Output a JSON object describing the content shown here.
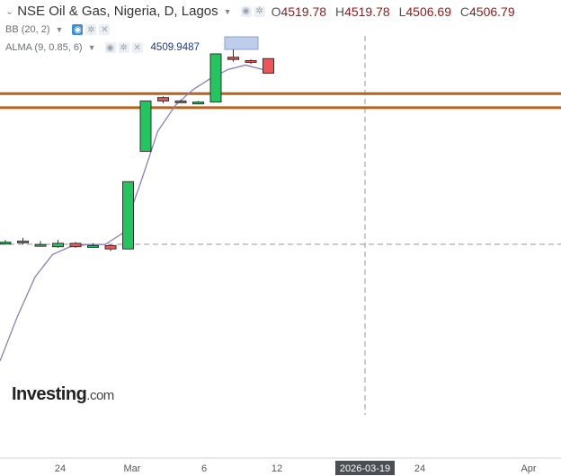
{
  "title": {
    "symbol": "NSE Oil & Gas, Nigeria, D, Lagos",
    "ohlc": [
      {
        "k": "O",
        "v": "4519.78"
      },
      {
        "k": "H",
        "v": "4519.78"
      },
      {
        "k": "L",
        "v": "4506.69"
      },
      {
        "k": "C",
        "v": "4506.79"
      }
    ]
  },
  "indicators": {
    "bb": {
      "label": "BB (20, 2)"
    },
    "alma": {
      "label": "ALMA (9, 0.85, 6)",
      "value": "4509.9487"
    }
  },
  "logo": {
    "main": "Investing",
    "suffix": ".com"
  },
  "colors": {
    "up": "#22c55e",
    "down": "#f05454",
    "line": "#8b7fb8",
    "hline": "#b5631f",
    "grid": "#999999"
  },
  "chart_data": {
    "type": "candlestick",
    "x_ticks": [
      "24",
      "Mar",
      "6",
      "12",
      "2026-03-19",
      "24",
      "Apr"
    ],
    "crosshair_label": "2026-03-19",
    "ylim": [
      4250,
      4540
    ],
    "candles": [
      {
        "o": 4356,
        "h": 4358,
        "l": 4354,
        "c": 4356
      },
      {
        "o": 4356,
        "h": 4360,
        "l": 4354,
        "c": 4357
      },
      {
        "o": 4354,
        "h": 4357,
        "l": 4353,
        "c": 4354
      },
      {
        "o": 4352,
        "h": 4358,
        "l": 4351,
        "c": 4355
      },
      {
        "o": 4355,
        "h": 4356,
        "l": 4351,
        "c": 4352
      },
      {
        "o": 4353,
        "h": 4355,
        "l": 4352,
        "c": 4353
      },
      {
        "o": 4353,
        "h": 4354,
        "l": 4348,
        "c": 4350
      },
      {
        "o": 4350,
        "h": 4410,
        "l": 4350,
        "c": 4410
      },
      {
        "o": 4437,
        "h": 4482,
        "l": 4437,
        "c": 4482
      },
      {
        "o": 4485,
        "h": 4486,
        "l": 4480,
        "c": 4482
      },
      {
        "o": 4482,
        "h": 4483,
        "l": 4480,
        "c": 4481
      },
      {
        "o": 4480,
        "h": 4482,
        "l": 4479,
        "c": 4481
      },
      {
        "o": 4481,
        "h": 4524,
        "l": 4481,
        "c": 4524
      },
      {
        "o": 4521,
        "h": 4528,
        "l": 4517,
        "c": 4519
      },
      {
        "o": 4518,
        "h": 4519,
        "l": 4515,
        "c": 4517
      },
      {
        "o": 4519.78,
        "h": 4519.78,
        "l": 4506.69,
        "c": 4506.79
      }
    ],
    "alma_line": [
      4250,
      4290,
      4325,
      4345,
      4352,
      4354,
      4354,
      4364,
      4408,
      4455,
      4478,
      4492,
      4502,
      4510,
      4514,
      4509.9487
    ],
    "horizontal_levels": [
      4488.5,
      4476
    ]
  }
}
